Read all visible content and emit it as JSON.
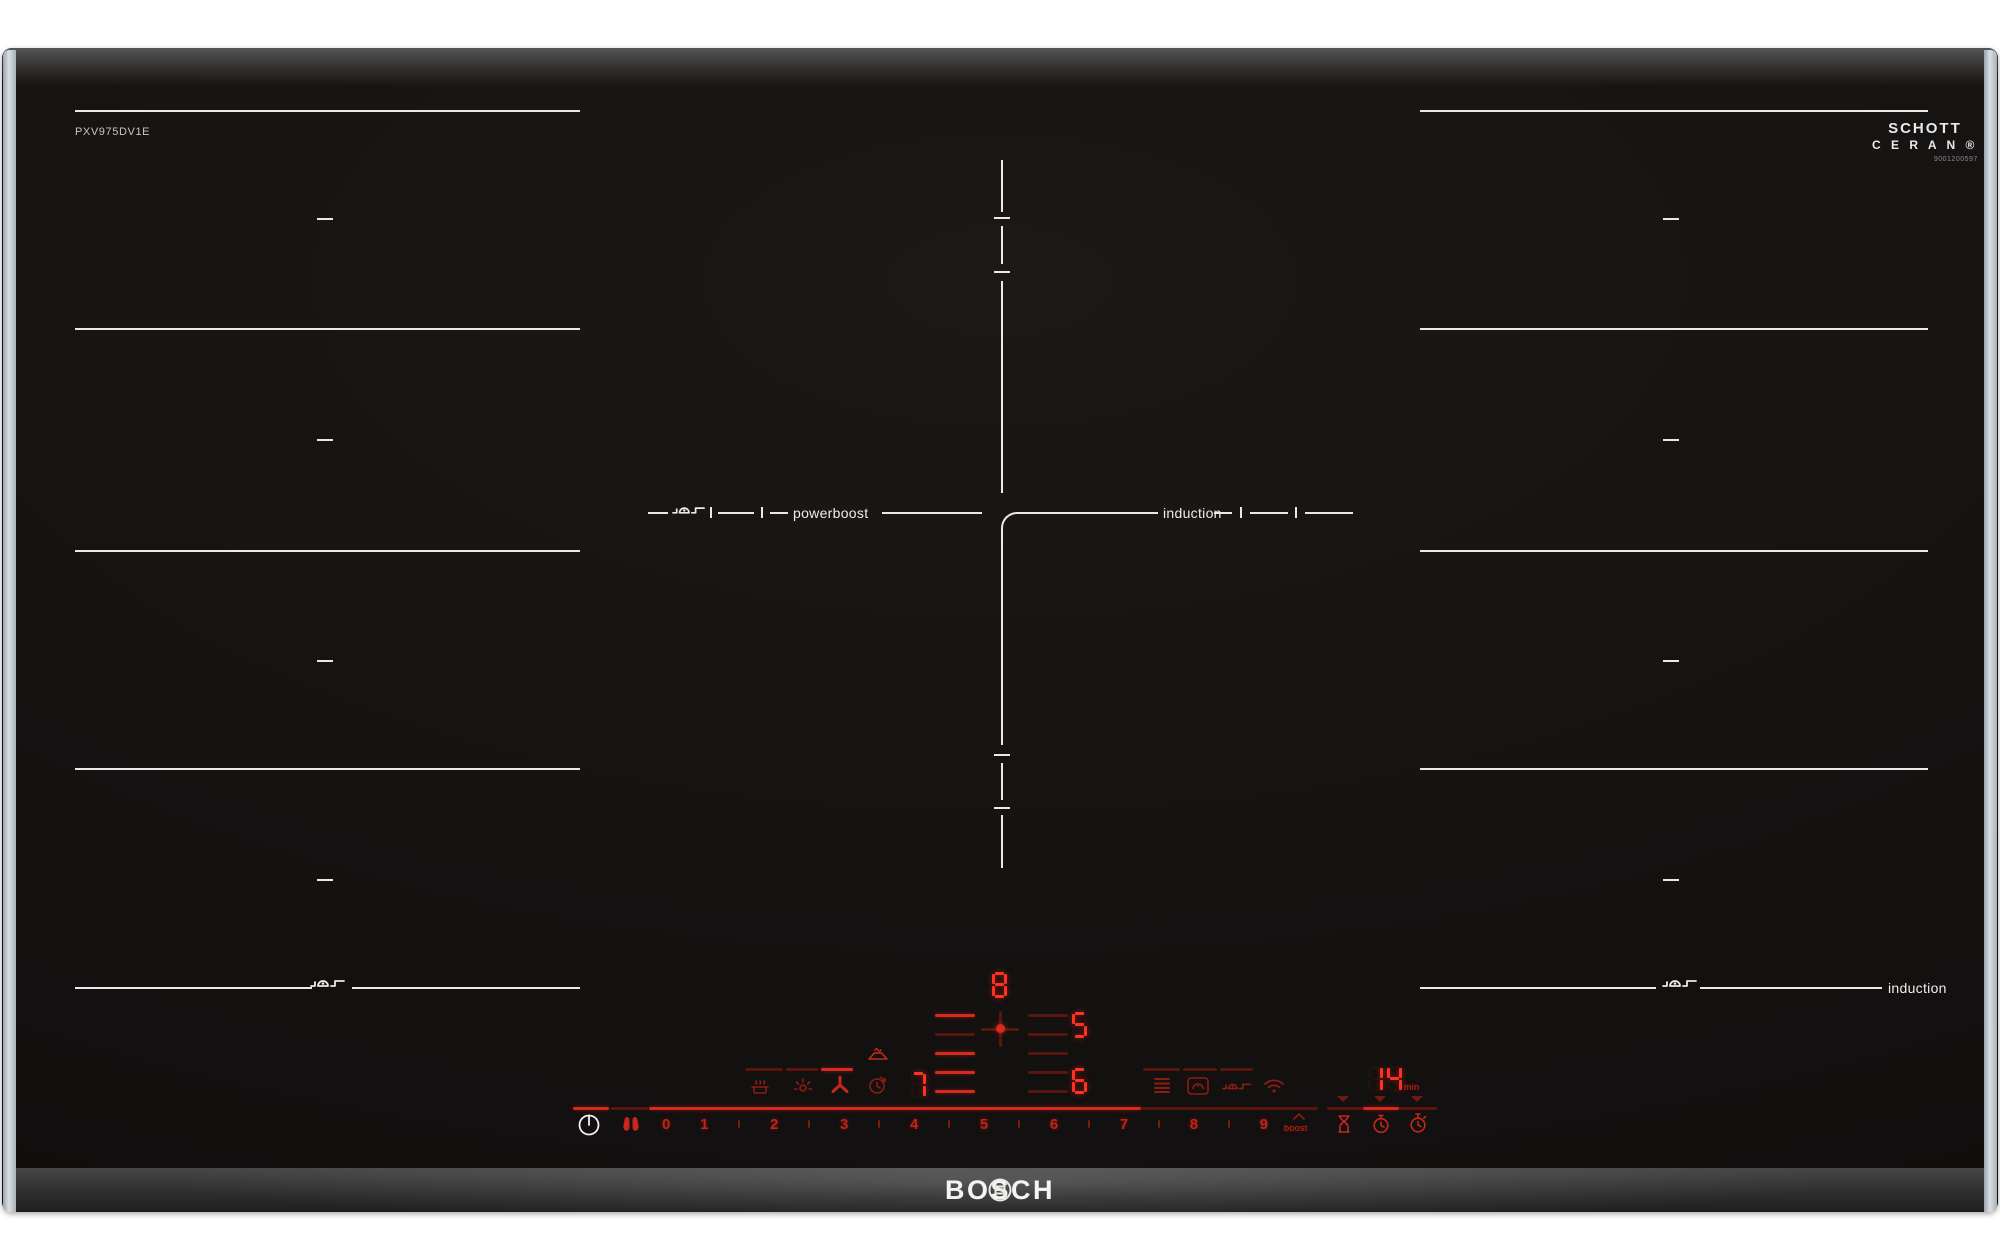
{
  "branding": {
    "model": "PXV975DV1E",
    "logo": "BOSCH",
    "glass_logo_line1": "SCHOTT",
    "glass_logo_line2": "C E R A N ®",
    "glass_code": "9001200597"
  },
  "zone_markings": {
    "center_left_label": "powerboost",
    "center_right_label": "induction",
    "bottom_right_label": "induction"
  },
  "display": {
    "zone_top_level": "8",
    "zone_right_top_level": "5",
    "zone_left_level": "7",
    "zone_right_bottom_level": "6",
    "timer_value": "14",
    "timer_unit": "min",
    "boost_label": "boost"
  },
  "power_slider": {
    "items": [
      "0",
      "1",
      "|",
      "2",
      "|",
      "3",
      "|",
      "4",
      "|",
      "5",
      "|",
      "6",
      "|",
      "7",
      "|",
      "8",
      "|",
      "9"
    ]
  },
  "icons": {
    "power_icon": "circle-with-vertical-bar",
    "wipe_protection_icon": "two-hands",
    "flex_pan_icon": "pan-with-handle",
    "cooking_sensor_icon": "pot-with-steam",
    "hood_light_icon": "lamp-rays",
    "hood_fan_icon": "three-blade-fan",
    "zone_timer_icon": "clock-with-arrow",
    "hood_icon": "extractor-hood",
    "menu_icon": "stacked-lines",
    "pan_recognition_icon": "framed-pan",
    "wifi_icon": "wifi-arcs",
    "boost_chevron_icon": "chevron-up",
    "egg_timer_icon": "hourglass",
    "kitchen_timer_icon": "alarm-clock",
    "stopwatch_icon": "stopwatch",
    "arrow_down_icon": "triangle-down",
    "bosch_emblem_icon": "circle-armature"
  },
  "colors": {
    "glass": "#141111",
    "zone_line": "#eae9e5",
    "red_bright": "#d62b1c",
    "red_dim": "#5a150f",
    "led": "#ff3222",
    "metal_rail": "#c9d3d8"
  }
}
